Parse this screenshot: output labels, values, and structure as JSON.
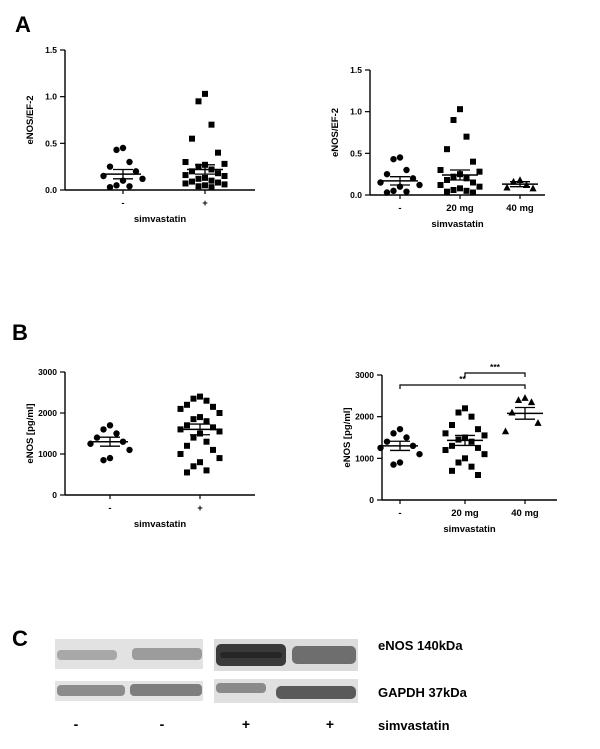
{
  "panels": {
    "a": "A",
    "b": "B",
    "c": "C"
  },
  "chart_data": [
    {
      "id": "a_left",
      "type": "scatter",
      "panel": "A",
      "ylabel": "eNOS/EF-2",
      "xlabel": "simvastatin",
      "ylim": [
        0,
        1.5
      ],
      "yticks": [
        0,
        0.5,
        1.0,
        1.5
      ],
      "ytick_labels": [
        "0.0",
        "0.5",
        "1.0",
        "1.5"
      ],
      "groups": [
        {
          "label": "-",
          "marker": "circle",
          "mean": 0.17,
          "sem": 0.05,
          "values": [
            0.45,
            0.43,
            0.3,
            0.25,
            0.2,
            0.15,
            0.12,
            0.1,
            0.05,
            0.04,
            0.03
          ]
        },
        {
          "label": "+",
          "marker": "square",
          "mean": 0.22,
          "sem": 0.05,
          "values": [
            1.03,
            0.95,
            0.7,
            0.55,
            0.4,
            0.3,
            0.28,
            0.27,
            0.25,
            0.22,
            0.2,
            0.18,
            0.16,
            0.15,
            0.13,
            0.12,
            0.1,
            0.09,
            0.08,
            0.07,
            0.06,
            0.05,
            0.04,
            0.03
          ]
        }
      ]
    },
    {
      "id": "a_right",
      "type": "scatter",
      "panel": "A",
      "ylabel": "eNOS/EF-2",
      "xlabel": "simvastatin",
      "ylim": [
        0,
        1.5
      ],
      "yticks": [
        0,
        0.5,
        1.0,
        1.5
      ],
      "ytick_labels": [
        "0.0",
        "0.5",
        "1.0",
        "1.5"
      ],
      "groups": [
        {
          "label": "-",
          "marker": "circle",
          "mean": 0.17,
          "sem": 0.05,
          "values": [
            0.45,
            0.43,
            0.3,
            0.25,
            0.2,
            0.15,
            0.12,
            0.1,
            0.05,
            0.04,
            0.03
          ]
        },
        {
          "label": "20 mg",
          "marker": "square",
          "mean": 0.24,
          "sem": 0.06,
          "values": [
            1.03,
            0.9,
            0.7,
            0.55,
            0.4,
            0.3,
            0.28,
            0.25,
            0.22,
            0.2,
            0.18,
            0.15,
            0.12,
            0.1,
            0.08,
            0.06,
            0.05,
            0.04,
            0.03
          ]
        },
        {
          "label": "40 mg",
          "marker": "triangle",
          "mean": 0.13,
          "sem": 0.03,
          "values": [
            0.18,
            0.16,
            0.12,
            0.09,
            0.08
          ]
        }
      ]
    },
    {
      "id": "b_left",
      "type": "scatter",
      "panel": "B",
      "ylabel": "eNOS [pg/ml]",
      "xlabel": "simvastatin",
      "ylim": [
        0,
        3000
      ],
      "yticks": [
        0,
        1000,
        2000,
        3000
      ],
      "ytick_labels": [
        "0",
        "1000",
        "2000",
        "3000"
      ],
      "groups": [
        {
          "label": "-",
          "marker": "circle",
          "mean": 1300,
          "sem": 110,
          "values": [
            1700,
            1600,
            1500,
            1400,
            1300,
            1250,
            1100,
            900,
            850
          ]
        },
        {
          "label": "+",
          "marker": "square",
          "mean": 1600,
          "sem": 130,
          "values": [
            2400,
            2350,
            2300,
            2200,
            2150,
            2100,
            2000,
            1900,
            1850,
            1800,
            1700,
            1650,
            1600,
            1550,
            1500,
            1400,
            1300,
            1200,
            1100,
            1000,
            900,
            800,
            700,
            600,
            550
          ]
        }
      ]
    },
    {
      "id": "b_right",
      "type": "scatter",
      "panel": "B",
      "ylabel": "eNOS [pg/ml]",
      "xlabel": "simvastatin",
      "ylim": [
        0,
        3000
      ],
      "yticks": [
        0,
        1000,
        2000,
        3000
      ],
      "ytick_labels": [
        "0",
        "1000",
        "2000",
        "3000"
      ],
      "groups": [
        {
          "label": "-",
          "marker": "circle",
          "mean": 1300,
          "sem": 110,
          "values": [
            1700,
            1600,
            1500,
            1400,
            1300,
            1250,
            1100,
            900,
            850
          ]
        },
        {
          "label": "20 mg",
          "marker": "square",
          "mean": 1430,
          "sem": 120,
          "values": [
            2200,
            2100,
            2000,
            1800,
            1700,
            1600,
            1550,
            1500,
            1450,
            1400,
            1300,
            1250,
            1200,
            1100,
            1000,
            900,
            800,
            700,
            600
          ]
        },
        {
          "label": "40 mg",
          "marker": "triangle",
          "mean": 2080,
          "sem": 140,
          "values": [
            2450,
            2400,
            2350,
            2100,
            1850,
            1650
          ]
        }
      ],
      "significance": [
        {
          "from": 0,
          "to": 2,
          "label": "**"
        },
        {
          "from": 1,
          "to": 2,
          "label": "***"
        }
      ]
    }
  ],
  "blot": {
    "rows": [
      {
        "label": "eNOS 140kDa"
      },
      {
        "label": "GAPDH 37kDa"
      }
    ],
    "lanes": [
      "-",
      "-",
      "+",
      "+"
    ],
    "treatment_label": "simvastatin"
  }
}
